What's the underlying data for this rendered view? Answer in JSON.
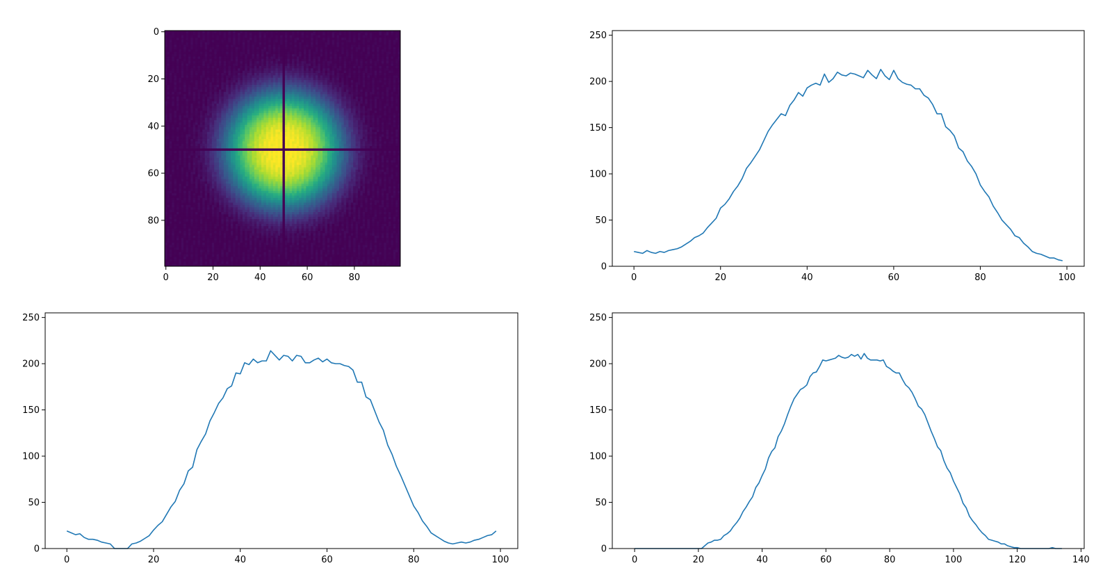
{
  "colors": {
    "line": "#1f77b4",
    "axis": "#000000",
    "background": "#ffffff",
    "colormap": "viridis"
  },
  "chart_data": [
    {
      "type": "heatmap",
      "title": "",
      "xlabel": "",
      "ylabel": "",
      "shape": [
        100,
        100
      ],
      "xlim": [
        -0.5,
        99.5
      ],
      "ylim": [
        99.5,
        -0.5
      ],
      "xticks": [
        0,
        20,
        40,
        60,
        80
      ],
      "yticks": [
        0,
        20,
        40,
        60,
        80
      ],
      "colormap": "viridis",
      "vmin": 0,
      "vmax": 220,
      "peak_center": [
        50,
        50
      ],
      "crosshair_row": 50,
      "crosshair_col": 50,
      "grid": false
    },
    {
      "type": "line",
      "title": "",
      "xlabel": "",
      "ylabel": "",
      "xlim": [
        -5,
        104
      ],
      "ylim": [
        0,
        255
      ],
      "xticks": [
        0,
        20,
        40,
        60,
        80,
        100
      ],
      "yticks": [
        0,
        50,
        100,
        150,
        200,
        250
      ],
      "grid": false,
      "series": [
        {
          "x_start": 0,
          "values": [
            16,
            15,
            14,
            17,
            15,
            14,
            16,
            15,
            17,
            18,
            19,
            21,
            24,
            27,
            31,
            33,
            36,
            42,
            47,
            52,
            63,
            67,
            73,
            81,
            87,
            95,
            106,
            112,
            119,
            126,
            136,
            146,
            153,
            159,
            165,
            163,
            174,
            180,
            188,
            184,
            193,
            196,
            198,
            196,
            208,
            199,
            203,
            210,
            207,
            206,
            209,
            208,
            206,
            204,
            212,
            207,
            203,
            213,
            206,
            202,
            212,
            203,
            199,
            197,
            196,
            192,
            192,
            185,
            182,
            175,
            165,
            165,
            151,
            147,
            141,
            128,
            124,
            114,
            108,
            100,
            88,
            81,
            75,
            65,
            58,
            50,
            45,
            40,
            33,
            31,
            25,
            21,
            16,
            14,
            13,
            11,
            9,
            9,
            7,
            6
          ]
        }
      ]
    },
    {
      "type": "line",
      "title": "",
      "xlabel": "",
      "ylabel": "",
      "xlim": [
        -5,
        104
      ],
      "ylim": [
        0,
        255
      ],
      "xticks": [
        0,
        20,
        40,
        60,
        80,
        100
      ],
      "yticks": [
        0,
        50,
        100,
        150,
        200,
        250
      ],
      "grid": false,
      "series": [
        {
          "x_start": 0,
          "values": [
            19,
            17,
            15,
            16,
            12,
            10,
            10,
            9,
            7,
            6,
            5,
            0,
            0,
            0,
            0,
            5,
            6,
            8,
            11,
            14,
            20,
            25,
            29,
            37,
            45,
            51,
            63,
            70,
            84,
            88,
            107,
            116,
            124,
            138,
            147,
            157,
            163,
            173,
            176,
            190,
            189,
            201,
            199,
            205,
            201,
            203,
            203,
            214,
            209,
            204,
            209,
            208,
            203,
            209,
            208,
            201,
            201,
            204,
            206,
            202,
            205,
            201,
            200,
            200,
            198,
            197,
            193,
            180,
            180,
            164,
            161,
            149,
            137,
            128,
            112,
            102,
            89,
            79,
            68,
            57,
            46,
            39,
            30,
            24,
            17,
            14,
            11,
            8,
            6,
            5,
            6,
            7,
            6,
            7,
            9,
            10,
            12,
            14,
            15,
            19
          ]
        }
      ]
    },
    {
      "type": "line",
      "title": "",
      "xlabel": "",
      "ylabel": "",
      "xlim": [
        -7,
        141
      ],
      "ylim": [
        0,
        255
      ],
      "xticks": [
        0,
        20,
        40,
        60,
        80,
        100,
        120,
        140
      ],
      "yticks": [
        0,
        50,
        100,
        150,
        200,
        250
      ],
      "grid": false,
      "series": [
        {
          "x_start": 0,
          "values": [
            0,
            0,
            0,
            0,
            0,
            0,
            0,
            0,
            0,
            0,
            0,
            0,
            0,
            0,
            0,
            0,
            0,
            0,
            0,
            0,
            0,
            0,
            3,
            6,
            7,
            9,
            9,
            10,
            14,
            16,
            19,
            24,
            28,
            33,
            40,
            45,
            51,
            56,
            66,
            71,
            79,
            86,
            98,
            105,
            109,
            121,
            127,
            135,
            145,
            154,
            162,
            167,
            172,
            174,
            177,
            186,
            190,
            191,
            197,
            204,
            203,
            204,
            205,
            206,
            209,
            207,
            206,
            207,
            210,
            208,
            210,
            205,
            211,
            206,
            204,
            204,
            204,
            203,
            204,
            197,
            195,
            192,
            190,
            190,
            183,
            177,
            174,
            169,
            162,
            154,
            151,
            145,
            136,
            127,
            119,
            110,
            106,
            95,
            87,
            82,
            73,
            66,
            59,
            49,
            44,
            35,
            30,
            26,
            21,
            17,
            14,
            10,
            9,
            8,
            7,
            5,
            5,
            3,
            2,
            1,
            1,
            0,
            0,
            0,
            0,
            0,
            0,
            0,
            0,
            0,
            0,
            1,
            0,
            0,
            0
          ]
        }
      ]
    }
  ]
}
